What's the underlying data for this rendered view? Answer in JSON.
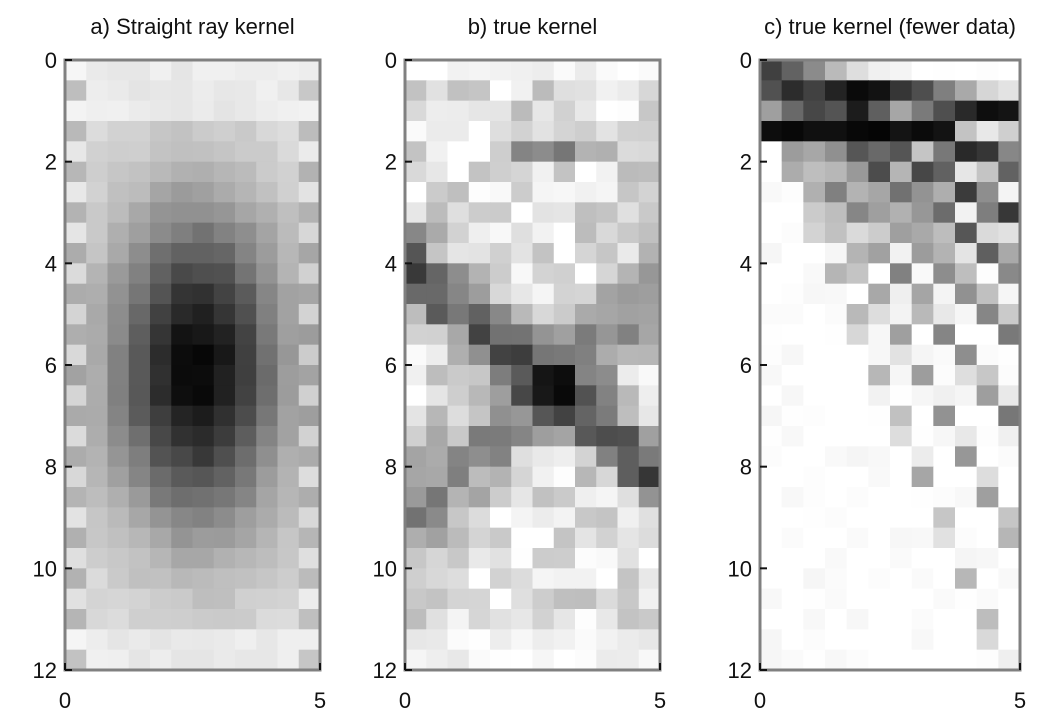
{
  "figure": {
    "background": "#ffffff",
    "axis_color": "#808080",
    "colormap": "gray_reversed"
  },
  "chart_data": [
    {
      "type": "heatmap",
      "title": "a) Straight ray kernel",
      "xlim": [
        0,
        5
      ],
      "ylim": [
        12,
        0
      ],
      "x_ticks": [
        "0",
        "5"
      ],
      "y_ticks": [
        "0",
        "2",
        "4",
        "6",
        "8",
        "10",
        "12"
      ],
      "grid": false,
      "kernel": "straight",
      "cells_x": 12,
      "cells_y": 30
    },
    {
      "type": "heatmap",
      "title": "b) true kernel",
      "xlim": [
        0,
        5
      ],
      "ylim": [
        12,
        0
      ],
      "x_ticks": [
        "0",
        "5"
      ],
      "y_ticks": [
        "0",
        "2",
        "4",
        "6",
        "8",
        "10",
        "12"
      ],
      "grid": false,
      "kernel": "true",
      "cells_x": 12,
      "cells_y": 30
    },
    {
      "type": "heatmap",
      "title": "c) true kernel (fewer data)",
      "xlim": [
        0,
        5
      ],
      "ylim": [
        12,
        0
      ],
      "x_ticks": [
        "0",
        "5"
      ],
      "y_ticks": [
        "0",
        "2",
        "4",
        "6",
        "8",
        "10",
        "12"
      ],
      "grid": false,
      "kernel": "fewer",
      "cells_x": 12,
      "cells_y": 30
    }
  ]
}
